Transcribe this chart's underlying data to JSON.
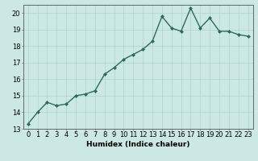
{
  "x": [
    0,
    1,
    2,
    3,
    4,
    5,
    6,
    7,
    8,
    9,
    10,
    11,
    12,
    13,
    14,
    15,
    16,
    17,
    18,
    19,
    20,
    21,
    22,
    23
  ],
  "y": [
    13.3,
    14.0,
    14.6,
    14.4,
    14.5,
    15.0,
    15.1,
    15.3,
    16.3,
    16.7,
    17.2,
    17.5,
    17.8,
    18.3,
    19.8,
    19.1,
    18.9,
    20.3,
    19.1,
    19.7,
    18.9,
    18.9,
    18.7,
    18.6
  ],
  "line_color": "#2d6b5e",
  "marker": "D",
  "marker_size": 2,
  "bg_color": "#cce8e4",
  "grid_color": "#aad4cc",
  "xlabel": "Humidex (Indice chaleur)",
  "xlim": [
    -0.5,
    23.5
  ],
  "ylim": [
    13,
    20.5
  ],
  "yticks": [
    13,
    14,
    15,
    16,
    17,
    18,
    19,
    20
  ],
  "xticks": [
    0,
    1,
    2,
    3,
    4,
    5,
    6,
    7,
    8,
    9,
    10,
    11,
    12,
    13,
    14,
    15,
    16,
    17,
    18,
    19,
    20,
    21,
    22,
    23
  ],
  "xlabel_fontsize": 6.5,
  "tick_fontsize": 6,
  "line_width": 1.0
}
